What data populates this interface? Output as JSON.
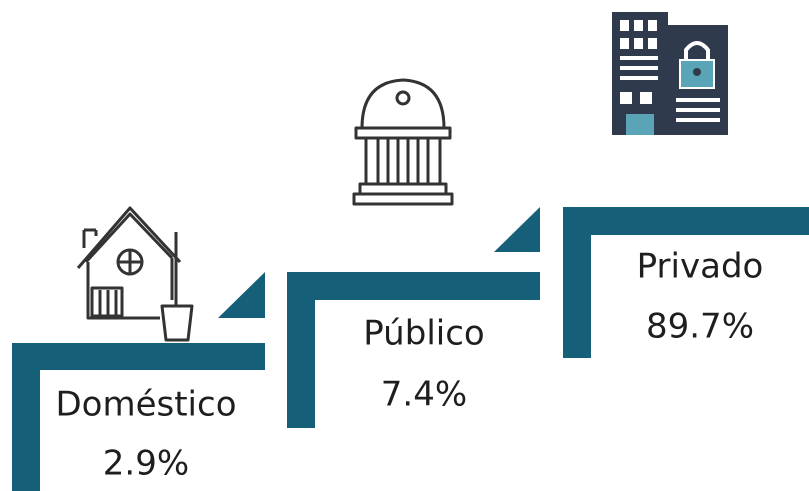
{
  "steps": [
    {
      "label": "Doméstico",
      "value": "2.9%"
    },
    {
      "label": "Público",
      "value": "7.4%"
    },
    {
      "label": "Privado",
      "value": "89.7%"
    }
  ]
}
